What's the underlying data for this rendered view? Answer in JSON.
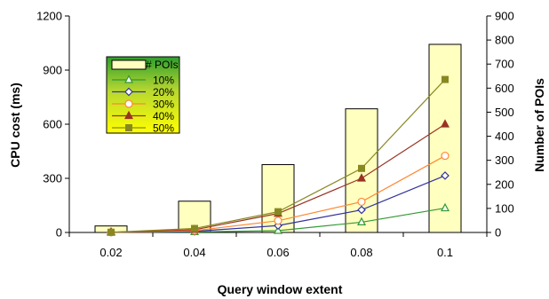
{
  "chart_data": {
    "type": "bar",
    "categories": [
      "0.02",
      "0.04",
      "0.06",
      "0.08",
      "0.1"
    ],
    "xlabel": "Query window extent",
    "ylabel_left": "CPU cost (ms)",
    "ylabel_right": "Number of POIs",
    "ylim_left": [
      0,
      1200
    ],
    "ylim_right": [
      0,
      900
    ],
    "yticks_left": [
      "0",
      "300",
      "600",
      "900",
      "1200"
    ],
    "yticks_right": [
      "0",
      "100",
      "200",
      "300",
      "400",
      "500",
      "600",
      "700",
      "800",
      "900"
    ],
    "grid": false,
    "legend_position": "top-left",
    "bars": {
      "name": "# POIs",
      "axis": "right",
      "values": [
        27,
        130,
        282,
        514,
        782
      ],
      "color": "#FFFFC0"
    },
    "series": [
      {
        "name": "10%",
        "axis": "left",
        "values": [
          1,
          3,
          10,
          57,
          135
        ],
        "color": "#339933",
        "marker": "triangle-open"
      },
      {
        "name": "20%",
        "axis": "left",
        "values": [
          1,
          6,
          38,
          125,
          315
        ],
        "color": "#33339A",
        "marker": "diamond-open"
      },
      {
        "name": "30%",
        "axis": "left",
        "values": [
          1,
          10,
          65,
          170,
          425
        ],
        "color": "#FF8833",
        "marker": "circle-open"
      },
      {
        "name": "40%",
        "axis": "left",
        "values": [
          1,
          15,
          105,
          300,
          600
        ],
        "color": "#993322",
        "marker": "triangle-filled"
      },
      {
        "name": "50%",
        "axis": "left",
        "values": [
          1,
          22,
          115,
          355,
          848
        ],
        "color": "#888822",
        "marker": "square-filled"
      }
    ]
  }
}
